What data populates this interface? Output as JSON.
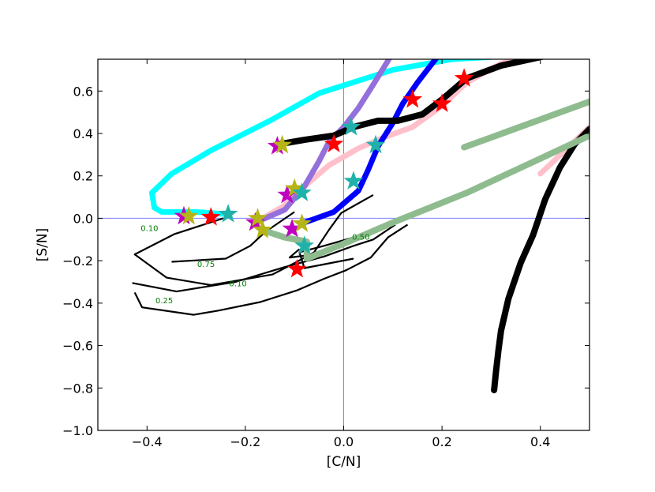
{
  "chart_data": {
    "type": "line",
    "title": "",
    "xlabel": "[C/N]",
    "ylabel": "[S/N]",
    "xlim": [
      -0.5,
      0.5
    ],
    "ylim": [
      -1.0,
      0.75
    ],
    "xticks": [
      -0.4,
      -0.2,
      0.0,
      0.2,
      0.4
    ],
    "yticks": [
      -1.0,
      -0.8,
      -0.6,
      -0.4,
      -0.2,
      0.0,
      0.2,
      0.4,
      0.6
    ],
    "xtick_labels": [
      "−0.4",
      "−0.2",
      "0.0",
      "0.2",
      "0.4"
    ],
    "ytick_labels": [
      "−1.0",
      "−0.8",
      "−0.6",
      "−0.4",
      "−0.2",
      "0.0",
      "0.2",
      "0.4",
      "0.6"
    ],
    "grid": false,
    "reference_lines": {
      "x": 0.0,
      "y": 0.0,
      "color": "#8080ff"
    },
    "colors": {
      "cyan": "#00ffff",
      "blue": "#0000ff",
      "lavender": "#9370db",
      "pink": "#ffc0cb",
      "black": "#000000",
      "green": "#8fbc8f",
      "red_star": "#ff0000",
      "magenta_star": "#c000c0",
      "olive_star": "#b5b515",
      "teal_star": "#20b2aa",
      "contour_label": "#008000"
    },
    "series": [
      {
        "color": "#00ffff",
        "width": 7,
        "points": [
          [
            0.45,
            0.82
          ],
          [
            0.3,
            0.76
          ],
          [
            0.22,
            0.75
          ],
          [
            0.1,
            0.7
          ],
          [
            -0.05,
            0.59
          ],
          [
            -0.15,
            0.46
          ],
          [
            -0.27,
            0.32
          ],
          [
            -0.35,
            0.21
          ],
          [
            -0.39,
            0.12
          ],
          [
            -0.385,
            0.05
          ],
          [
            -0.37,
            0.03
          ],
          [
            -0.3,
            0.03
          ],
          [
            -0.24,
            0.02
          ]
        ]
      },
      {
        "color": "#ffc0cb",
        "width": 7,
        "points": [
          [
            -0.18,
            -0.02
          ],
          [
            -0.12,
            0.06
          ],
          [
            -0.08,
            0.15
          ],
          [
            -0.03,
            0.25
          ],
          [
            0.03,
            0.33
          ],
          [
            0.08,
            0.38
          ],
          [
            0.14,
            0.43
          ],
          [
            0.2,
            0.53
          ],
          [
            0.25,
            0.64
          ],
          [
            0.32,
            0.73
          ],
          [
            0.42,
            0.78
          ]
        ]
      },
      {
        "color": "#ffc0cb",
        "width": 7,
        "points": [
          [
            0.4,
            0.21
          ],
          [
            0.45,
            0.32
          ],
          [
            0.5,
            0.43
          ]
        ]
      },
      {
        "color": "#9370db",
        "width": 7,
        "points": [
          [
            -0.17,
            -0.01
          ],
          [
            -0.12,
            0.04
          ],
          [
            -0.08,
            0.15
          ],
          [
            -0.05,
            0.27
          ],
          [
            -0.03,
            0.36
          ],
          [
            0.0,
            0.43
          ],
          [
            0.03,
            0.52
          ],
          [
            0.06,
            0.63
          ],
          [
            0.1,
            0.78
          ]
        ]
      },
      {
        "color": "#0000ff",
        "width": 7,
        "points": [
          [
            -0.08,
            -0.02
          ],
          [
            -0.02,
            0.03
          ],
          [
            0.03,
            0.13
          ],
          [
            0.05,
            0.23
          ],
          [
            0.07,
            0.34
          ],
          [
            0.1,
            0.45
          ],
          [
            0.12,
            0.54
          ],
          [
            0.15,
            0.64
          ],
          [
            0.2,
            0.79
          ]
        ]
      },
      {
        "color": "#000000",
        "width": 8,
        "points": [
          [
            -0.13,
            0.35
          ],
          [
            -0.08,
            0.37
          ],
          [
            -0.02,
            0.39
          ],
          [
            0.02,
            0.43
          ],
          [
            0.07,
            0.46
          ],
          [
            0.11,
            0.46
          ],
          [
            0.16,
            0.49
          ],
          [
            0.2,
            0.56
          ],
          [
            0.25,
            0.66
          ],
          [
            0.32,
            0.72
          ],
          [
            0.42,
            0.77
          ],
          [
            0.5,
            0.8
          ]
        ]
      },
      {
        "color": "#000000",
        "width": 8,
        "points": [
          [
            0.306,
            -0.81
          ],
          [
            0.31,
            -0.72
          ],
          [
            0.315,
            -0.62
          ],
          [
            0.32,
            -0.53
          ],
          [
            0.335,
            -0.38
          ],
          [
            0.36,
            -0.21
          ],
          [
            0.385,
            -0.08
          ],
          [
            0.41,
            0.09
          ],
          [
            0.44,
            0.24
          ],
          [
            0.47,
            0.35
          ],
          [
            0.5,
            0.42
          ]
        ]
      },
      {
        "color": "#8fbc8f",
        "width": 8,
        "points": [
          [
            -0.16,
            -0.06
          ],
          [
            -0.12,
            -0.09
          ],
          [
            -0.075,
            -0.11
          ],
          [
            -0.075,
            -0.19
          ],
          [
            0.0,
            -0.12
          ],
          [
            0.1,
            -0.02
          ],
          [
            0.25,
            0.12
          ],
          [
            0.38,
            0.26
          ],
          [
            0.5,
            0.39
          ]
        ]
      },
      {
        "color": "#8fbc8f",
        "width": 8,
        "points": [
          [
            0.245,
            0.335
          ],
          [
            0.5,
            0.55
          ]
        ]
      }
    ],
    "contours": [
      {
        "label": "0.10",
        "points": [
          [
            0.06,
            0.11
          ],
          [
            -0.005,
            0.025
          ],
          [
            -0.03,
            -0.055
          ],
          [
            -0.06,
            -0.16
          ],
          [
            -0.095,
            -0.205
          ],
          [
            -0.145,
            -0.265
          ],
          [
            -0.27,
            -0.315
          ],
          [
            -0.36,
            -0.28
          ],
          [
            -0.425,
            -0.17
          ],
          [
            -0.345,
            -0.075
          ],
          [
            -0.245,
            0.0
          ]
        ]
      },
      {
        "label": "0.10",
        "points": [
          [
            0.13,
            -0.03
          ],
          [
            0.09,
            -0.09
          ],
          [
            0.055,
            -0.185
          ],
          [
            0.005,
            -0.245
          ],
          [
            -0.04,
            -0.285
          ],
          [
            -0.095,
            -0.34
          ],
          [
            -0.17,
            -0.395
          ],
          [
            -0.255,
            -0.435
          ],
          [
            -0.305,
            -0.455
          ],
          [
            -0.41,
            -0.42
          ],
          [
            -0.425,
            -0.35
          ]
        ]
      },
      {
        "label": "0.25",
        "points": [
          [
            -0.1,
            0.03
          ],
          [
            -0.16,
            -0.065
          ],
          [
            -0.19,
            -0.13
          ],
          [
            -0.24,
            -0.19
          ],
          [
            -0.35,
            -0.205
          ]
        ]
      },
      {
        "label": "0.25",
        "points": [
          [
            0.105,
            -0.03
          ],
          [
            0.06,
            -0.1
          ],
          [
            0.02,
            -0.13
          ],
          [
            -0.04,
            -0.18
          ],
          [
            -0.12,
            -0.23
          ],
          [
            -0.22,
            -0.3
          ],
          [
            -0.34,
            -0.345
          ],
          [
            -0.43,
            -0.305
          ]
        ]
      },
      {
        "label": "0.50",
        "points": [
          [
            0.02,
            -0.09
          ],
          [
            -0.04,
            -0.13
          ],
          [
            -0.09,
            -0.16
          ],
          [
            -0.08,
            -0.235
          ],
          [
            0.02,
            -0.19
          ]
        ]
      },
      {
        "label": "0.75",
        "points": [
          [
            -0.09,
            -0.145
          ],
          [
            -0.11,
            -0.185
          ],
          [
            -0.075,
            -0.175
          ]
        ]
      }
    ],
    "contour_label_positions": [
      {
        "text": "0.10",
        "x": -0.395,
        "y": -0.06
      },
      {
        "text": "0.25",
        "x": -0.365,
        "y": -0.4
      },
      {
        "text": "0.50",
        "x": 0.035,
        "y": -0.1
      },
      {
        "text": "0.75",
        "x": -0.28,
        "y": -0.23
      },
      {
        "text": "0.10",
        "x": -0.215,
        "y": -0.32
      }
    ],
    "markers": [
      {
        "color": "#ff0000",
        "points": [
          [
            -0.27,
            0.005
          ],
          [
            -0.02,
            0.35
          ],
          [
            0.14,
            0.56
          ],
          [
            0.2,
            0.54
          ],
          [
            0.245,
            0.66
          ],
          [
            -0.095,
            -0.24
          ]
        ]
      },
      {
        "color": "#c000c0",
        "points": [
          [
            -0.325,
            0.01
          ],
          [
            -0.135,
            0.34
          ],
          [
            -0.18,
            -0.02
          ],
          [
            -0.115,
            0.11
          ],
          [
            -0.105,
            -0.05
          ]
        ]
      },
      {
        "color": "#b5b515",
        "points": [
          [
            -0.315,
            0.01
          ],
          [
            -0.125,
            0.345
          ],
          [
            -0.1,
            0.14
          ],
          [
            -0.165,
            -0.055
          ],
          [
            -0.085,
            -0.025
          ],
          [
            -0.175,
            0.0
          ]
        ]
      },
      {
        "color": "#20b2aa",
        "points": [
          [
            -0.235,
            0.02
          ],
          [
            0.015,
            0.43
          ],
          [
            0.065,
            0.345
          ],
          [
            0.02,
            0.175
          ],
          [
            -0.085,
            0.12
          ],
          [
            -0.08,
            -0.13
          ]
        ]
      }
    ]
  }
}
